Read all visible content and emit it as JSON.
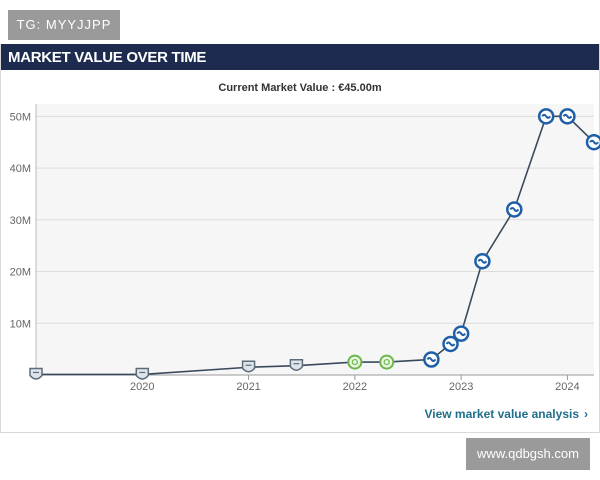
{
  "badge": {
    "text": "TG: MYYJJPP"
  },
  "header": {
    "title": "MARKET VALUE OVER TIME"
  },
  "current_value_text": "Current Market Value : €45.00m",
  "link": {
    "label": "View market value analysis",
    "chevron": "›"
  },
  "watermark": {
    "text": "www.qdbgsh.com"
  },
  "colors": {
    "header_bg": "#1d2b4f",
    "line": "#3a4a5c",
    "plot_bg": "#f6f6f6",
    "grid": "#dcdcdc",
    "marker_blue": "#1f5fa8",
    "marker_green": "#6cb84a",
    "marker_gray": "#5d6b78",
    "link": "#1f6f8b"
  },
  "chart_data": {
    "type": "line",
    "title": "",
    "xlabel": "",
    "ylabel": "",
    "x_ticks": [
      "2020",
      "2021",
      "2022",
      "2023",
      "2024"
    ],
    "y_ticks": [
      "10M",
      "20M",
      "30M",
      "40M",
      "50M"
    ],
    "xlim": [
      2019.0,
      2024.25
    ],
    "ylim": [
      0,
      52
    ],
    "grid": true,
    "series": [
      {
        "x": [
          2019.0,
          2020.0,
          2021.0,
          2021.45,
          2022.0,
          2022.3,
          2022.72,
          2022.9,
          2023.0,
          2023.2,
          2023.5,
          2023.8,
          2024.0,
          2024.25
        ],
        "y": [
          0.1,
          0.1,
          1.5,
          1.8,
          2.5,
          2.5,
          3.0,
          6.0,
          8.0,
          22.0,
          32.0,
          50.0,
          50.0,
          45.0
        ],
        "marker_icons": [
          "gray-crest-icon",
          "gray-crest-icon",
          "gray-crest-icon",
          "gray-crest-icon",
          "green-crest-icon",
          "green-crest-icon",
          "blue-crest-icon",
          "blue-crest-icon",
          "blue-crest-icon",
          "blue-crest-icon",
          "blue-crest-icon",
          "blue-crest-icon",
          "blue-crest-icon",
          "blue-crest-icon"
        ]
      }
    ]
  }
}
